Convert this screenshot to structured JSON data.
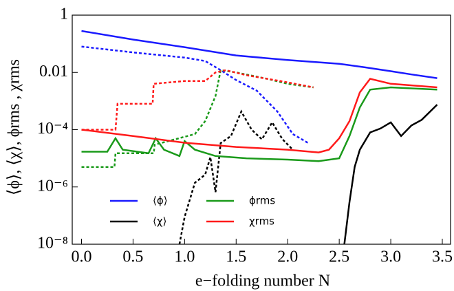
{
  "chart_data": {
    "type": "line",
    "x_label": "e−folding number N",
    "y_label": "⟨ϕ⟩, ⟨χ⟩, ϕrms , χrms",
    "ylog": true,
    "xlim": [
      -0.09,
      3.58
    ],
    "ylim": [
      1e-08,
      1
    ],
    "xticks": [
      {
        "value": 0,
        "label": "0.0"
      },
      0.5,
      {
        "value": 1,
        "label": "1.0"
      },
      1.5,
      {
        "value": 2,
        "label": "2.0"
      },
      2.5,
      {
        "value": 3,
        "label": "3.0"
      },
      3.5
    ],
    "yticks": [
      {
        "value": 1e-08,
        "label": "10⁻⁸"
      },
      {
        "value": 1e-06,
        "label": "10⁻⁶"
      },
      {
        "value": 0.0001,
        "label": "10⁻⁴"
      },
      0.01,
      1
    ],
    "series": [
      {
        "name": "⟨ϕ⟩",
        "color": "#1a1aff",
        "dash": false,
        "x": [
          0,
          0.5,
          1,
          1.5,
          2,
          2.5,
          2.75,
          3,
          3.2,
          3.45
        ],
        "values": [
          0.28,
          0.14,
          0.076,
          0.039,
          0.027,
          0.02,
          0.015,
          0.011,
          0.0085,
          0.0063
        ]
      },
      {
        "color": "#1a1aff",
        "dash": true,
        "x": [
          0,
          0.5,
          1,
          1.2,
          1.35,
          1.5,
          1.7,
          1.9,
          2.05,
          2.2
        ],
        "values": [
          0.08,
          0.05,
          0.033,
          0.025,
          0.012,
          0.0054,
          0.0023,
          0.00043,
          7e-05,
          3.4e-05
        ]
      },
      {
        "name": "⟨χ⟩",
        "color": "#000000",
        "dash": false,
        "x": [
          2.55,
          2.6,
          2.65,
          2.7,
          2.8,
          2.9,
          3,
          3.1,
          3.2,
          3.3,
          3.45
        ],
        "values": [
          1e-08,
          3e-07,
          5e-06,
          2e-05,
          8e-05,
          0.00011,
          0.00018,
          6e-05,
          0.00014,
          0.00022,
          0.00075
        ]
      },
      {
        "color": "#000000",
        "dash": true,
        "x": [
          0.95,
          1,
          1.1,
          1.2,
          1.25,
          1.3,
          1.35,
          1.45,
          1.55,
          1.65,
          1.75,
          1.85,
          1.95,
          2.05
        ],
        "values": [
          1e-08,
          9e-08,
          1.4e-06,
          2.7e-06,
          1.1e-05,
          6.6e-07,
          3.4e-05,
          6e-05,
          0.00043,
          0.0001,
          4.6e-05,
          0.00018,
          4.6e-05,
          2e-05
        ]
      },
      {
        "name": "ϕrms",
        "color": "#1a9a1a",
        "dash": false,
        "x": [
          0,
          0.25,
          0.33,
          0.4,
          0.65,
          0.72,
          0.8,
          0.95,
          1,
          1.1,
          1.3,
          1.6,
          2,
          2.3,
          2.5,
          2.6,
          2.7,
          2.8,
          3,
          3.45
        ],
        "values": [
          1.7e-05,
          1.7e-05,
          5e-05,
          2e-05,
          1.5e-05,
          5e-05,
          2e-05,
          1.2e-05,
          4e-05,
          2e-05,
          1.2e-05,
          1e-05,
          9e-06,
          8e-06,
          1e-05,
          6e-05,
          0.0006,
          0.0025,
          0.003,
          0.0025
        ]
      },
      {
        "color": "#1a9a1a",
        "dash": true,
        "x": [
          0,
          0.32,
          0.33,
          0.7,
          0.71,
          1.1,
          1.2,
          1.3,
          1.35,
          1.5,
          1.8,
          2,
          2.25
        ],
        "values": [
          5e-06,
          5e-06,
          1.5e-05,
          1.5e-05,
          3e-05,
          7e-05,
          0.0002,
          0.0015,
          0.012,
          0.01,
          0.006,
          0.004,
          0.003
        ]
      },
      {
        "name": "χrms",
        "color": "#ff1a1a",
        "dash": false,
        "x": [
          0,
          0.5,
          1,
          1.5,
          2,
          2.3,
          2.4,
          2.5,
          2.6,
          2.7,
          2.8,
          3,
          3.45
        ],
        "values": [
          0.0001,
          6e-05,
          3.5e-05,
          2.5e-05,
          2e-05,
          1.6e-05,
          2e-05,
          5e-05,
          0.0002,
          0.002,
          0.006,
          0.004,
          0.003
        ]
      },
      {
        "color": "#ff1a1a",
        "dash": true,
        "x": [
          0,
          0.33,
          0.35,
          0.69,
          0.7,
          1,
          1.2,
          1.3,
          1.4,
          1.6,
          1.8,
          2,
          2.25
        ],
        "values": [
          0.0001,
          0.0001,
          0.0008,
          0.0008,
          0.004,
          0.005,
          0.005,
          0.01,
          0.012,
          0.008,
          0.006,
          0.0045,
          0.003
        ]
      }
    ]
  }
}
